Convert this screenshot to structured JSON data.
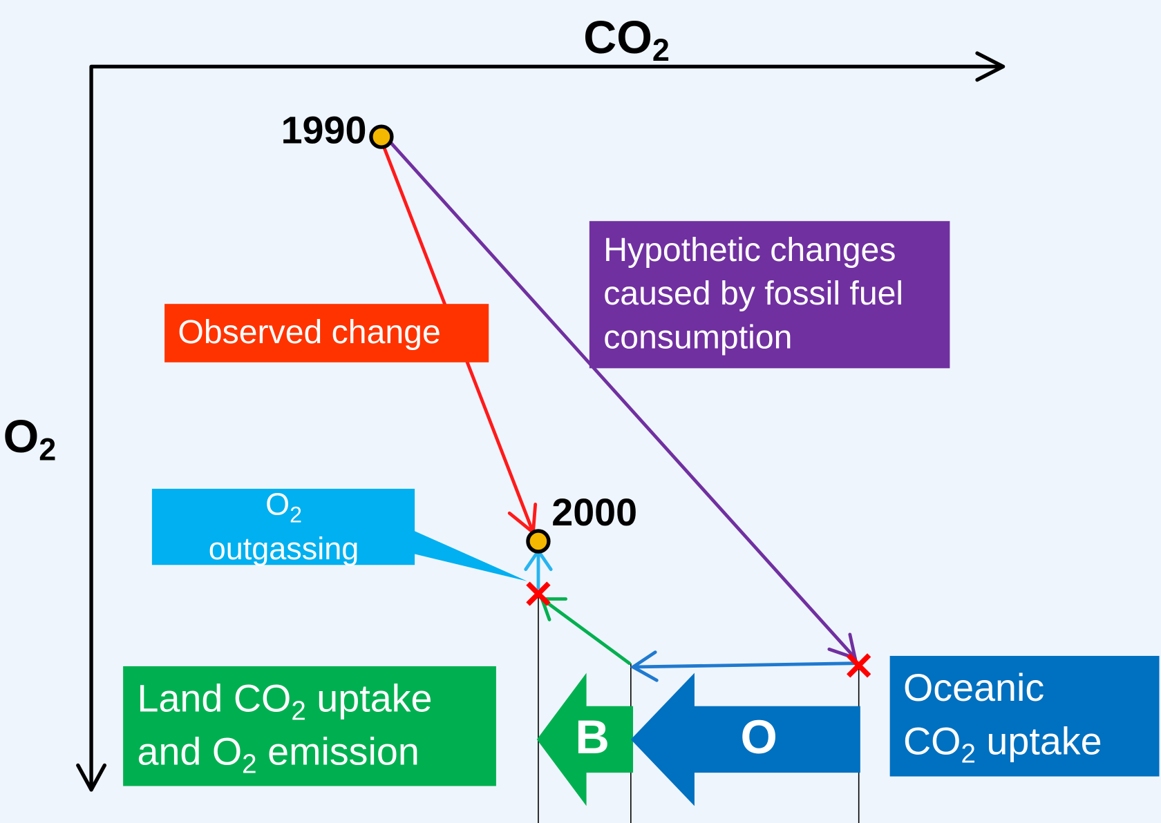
{
  "axes": {
    "x_label": [
      "CO",
      "2"
    ],
    "y_label": [
      "O",
      "2"
    ]
  },
  "points": [
    {
      "label": "1990"
    },
    {
      "label": "2000"
    }
  ],
  "boxes": {
    "observed": "Observed change",
    "hypothetic": [
      "Hypothetic changes",
      "caused by fossil fuel",
      "consumption"
    ],
    "outgassing": [
      [
        "O",
        "2"
      ],
      "outgassing"
    ],
    "land": [
      [
        "Land CO",
        "2",
        " uptake"
      ],
      [
        "and O",
        "2",
        " emission"
      ]
    ],
    "oceanic": [
      "Oceanic",
      [
        "CO",
        "2",
        " uptake"
      ]
    ]
  },
  "arrows": {
    "B": "B",
    "O": "O"
  }
}
